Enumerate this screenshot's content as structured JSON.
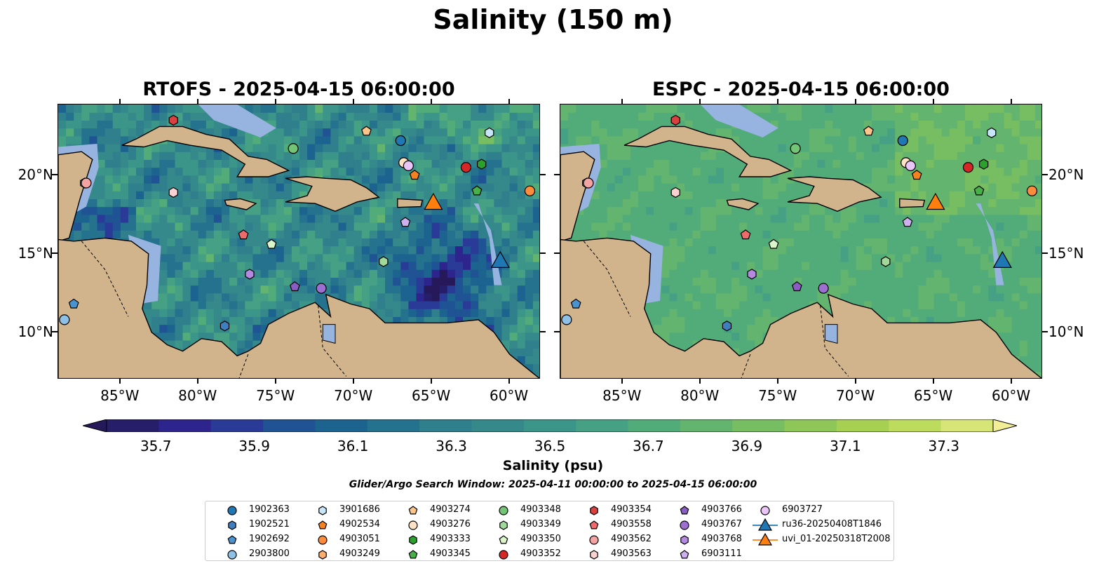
{
  "figure": {
    "title": "Salinity (150 m)",
    "colorbar_label": "Salinity (psu)",
    "search_window": "Glider/Argo Search Window: 2025-04-11 00:00:00 to 2025-04-15 06:00:00"
  },
  "panels": [
    {
      "title": "RTOFS - 2025-04-15 06:00:00",
      "model": "RTOFS"
    },
    {
      "title": "ESPC - 2025-04-15 06:00:00",
      "model": "ESPC"
    }
  ],
  "axes": {
    "lon_labels": [
      "85°W",
      "80°W",
      "75°W",
      "70°W",
      "65°W",
      "60°W"
    ],
    "lon_values": [
      -85,
      -80,
      -75,
      -70,
      -65,
      -60
    ],
    "lat_labels": [
      "20°N",
      "15°N",
      "10°N"
    ],
    "lat_values": [
      20,
      15,
      10
    ],
    "lon_range": [
      -89,
      -58
    ],
    "lat_range": [
      7,
      24.5
    ]
  },
  "colorbar": {
    "min": 35.6,
    "max": 37.4,
    "step": 0.1,
    "extend": "both",
    "tick_labels": [
      "35.7",
      "35.9",
      "36.1",
      "36.3",
      "36.5",
      "36.7",
      "36.9",
      "37.1",
      "37.3"
    ],
    "colors": [
      "#271e6a",
      "#2d248e",
      "#2a3b97",
      "#1f5394",
      "#1d6390",
      "#24728e",
      "#2f7f8c",
      "#36898b",
      "#3b9588",
      "#46a184",
      "#52ac7a",
      "#63b46e",
      "#77bd62",
      "#8ec758",
      "#a5d052",
      "#bddb5c",
      "#d6e576"
    ],
    "over_color": "#f2ee96",
    "under_color": "#26195a",
    "land_color": "#d2b48c",
    "shelf_color": "#97b4e0"
  },
  "legend": {
    "items": [
      {
        "label": "1902363",
        "marker": "circle",
        "color": "#1f77b4"
      },
      {
        "label": "1902521",
        "marker": "hexagon",
        "color": "#3f7fbf"
      },
      {
        "label": "1902692",
        "marker": "pentagon",
        "color": "#4a93d1"
      },
      {
        "label": "2903800",
        "marker": "circle",
        "color": "#8fc0e6"
      },
      {
        "label": "3901686",
        "marker": "hexagon",
        "color": "#c8e6f7"
      },
      {
        "label": "4902534",
        "marker": "pentagon",
        "color": "#f58220"
      },
      {
        "label": "4903051",
        "marker": "circle",
        "color": "#fd8d3c"
      },
      {
        "label": "4903249",
        "marker": "hexagon",
        "color": "#fdae6b"
      },
      {
        "label": "4903274",
        "marker": "pentagon",
        "color": "#fdc58a"
      },
      {
        "label": "4903276",
        "marker": "circle",
        "color": "#fde2c5"
      },
      {
        "label": "4903333",
        "marker": "hexagon",
        "color": "#2ca02c"
      },
      {
        "label": "4903345",
        "marker": "pentagon",
        "color": "#48b048"
      },
      {
        "label": "4903348",
        "marker": "circle",
        "color": "#74c476"
      },
      {
        "label": "4903349",
        "marker": "hexagon",
        "color": "#a1d99b"
      },
      {
        "label": "4903350",
        "marker": "pentagon",
        "color": "#d9f5c9"
      },
      {
        "label": "4903352",
        "marker": "circle",
        "color": "#d62728"
      },
      {
        "label": "4903354",
        "marker": "hexagon",
        "color": "#d94040"
      },
      {
        "label": "4903558",
        "marker": "pentagon",
        "color": "#ef6a6a"
      },
      {
        "label": "4903562",
        "marker": "circle",
        "color": "#f4a3a3"
      },
      {
        "label": "4903563",
        "marker": "hexagon",
        "color": "#fbd2d2"
      },
      {
        "label": "4903766",
        "marker": "pentagon",
        "color": "#8a5cc4"
      },
      {
        "label": "4903767",
        "marker": "circle",
        "color": "#9c6fd1"
      },
      {
        "label": "4903768",
        "marker": "hexagon",
        "color": "#b48ae0"
      },
      {
        "label": "6903111",
        "marker": "pentagon",
        "color": "#cdb0ee"
      },
      {
        "label": "6903727",
        "marker": "circle",
        "color": "#e9c6f7"
      },
      {
        "label": "ru36-20250408T1846",
        "marker": "triangle",
        "color": "#1f77b4"
      },
      {
        "label": "uvi_01-20250318T2008",
        "marker": "triangle",
        "color": "#ff7f0e"
      }
    ]
  },
  "floats": [
    {
      "id": "1902363",
      "lon": -67.0,
      "lat": 22.2
    },
    {
      "id": "1902521",
      "lon": -78.3,
      "lat": 10.4
    },
    {
      "id": "1902692",
      "lon": -88.0,
      "lat": 11.8
    },
    {
      "id": "2903800",
      "lon": -88.6,
      "lat": 10.8
    },
    {
      "id": "3901686",
      "lon": -61.3,
      "lat": 22.7
    },
    {
      "id": "4902534",
      "lon": -66.1,
      "lat": 20.0
    },
    {
      "id": "4903051",
      "lon": -58.7,
      "lat": 19.0
    },
    {
      "id": "4903249",
      "lon": -87.3,
      "lat": 19.5
    },
    {
      "id": "4903274",
      "lon": -69.2,
      "lat": 22.8
    },
    {
      "id": "4903276",
      "lon": -66.8,
      "lat": 20.8
    },
    {
      "id": "4903333",
      "lon": -61.8,
      "lat": 20.7
    },
    {
      "id": "4903345",
      "lon": -62.1,
      "lat": 19.0
    },
    {
      "id": "4903348",
      "lon": -73.9,
      "lat": 21.7
    },
    {
      "id": "4903349",
      "lon": -68.1,
      "lat": 14.5
    },
    {
      "id": "4903350",
      "lon": -75.3,
      "lat": 15.6
    },
    {
      "id": "4903352",
      "lon": -62.8,
      "lat": 20.5
    },
    {
      "id": "4903354",
      "lon": -81.6,
      "lat": 23.5
    },
    {
      "id": "4903558",
      "lon": -77.1,
      "lat": 16.2
    },
    {
      "id": "4903562",
      "lon": -87.2,
      "lat": 19.5
    },
    {
      "id": "4903563",
      "lon": -81.6,
      "lat": 18.9
    },
    {
      "id": "4903766",
      "lon": -73.8,
      "lat": 12.9
    },
    {
      "id": "4903767",
      "lon": -72.1,
      "lat": 12.8
    },
    {
      "id": "4903768",
      "lon": -76.7,
      "lat": 13.7
    },
    {
      "id": "6903111",
      "lon": -66.7,
      "lat": 17.0
    },
    {
      "id": "6903727",
      "lon": -66.5,
      "lat": 20.6
    },
    {
      "id": "ru36-20250408T1846",
      "lon": -60.6,
      "lat": 14.5
    },
    {
      "id": "uvi_01-20250318T2008",
      "lon": -64.9,
      "lat": 18.2
    }
  ]
}
